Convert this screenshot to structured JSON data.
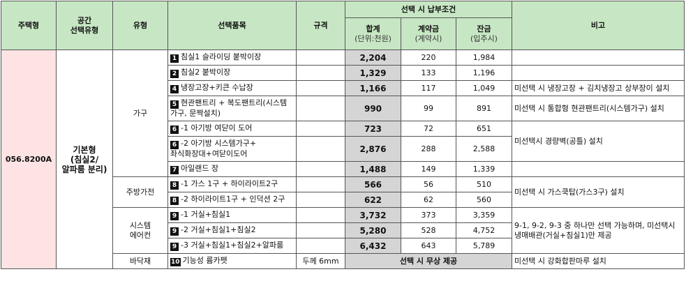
{
  "header": {
    "unit_type": "주택형",
    "space_type": "공간\n선택유형",
    "category": "유형",
    "item": "선택품목",
    "spec": "규격",
    "payment": "선택 시 납부조건",
    "total": "합계",
    "total_unit": "(단위:천원)",
    "deposit": "계약금",
    "deposit_sub": "(계약시)",
    "balance": "잔금",
    "balance_sub": "(입주시)",
    "remarks": "비고"
  },
  "group": {
    "unit_type": "056.8200A",
    "space_type": "기본형\n(침실2/\n알파룸 분리)"
  },
  "categories": {
    "furniture": "가구",
    "kitchen": "주방가전",
    "aircon": "시스템\n에어컨",
    "floor": "바닥재"
  },
  "rows": [
    {
      "no": "1",
      "item": "침실1 슬라이딩 붙박이장",
      "spec": "",
      "total": "2,204",
      "deposit": "220",
      "balance": "1,984"
    },
    {
      "no": "2",
      "item": "침실2 붙박이장",
      "spec": "",
      "total": "1,329",
      "deposit": "133",
      "balance": "1,196"
    },
    {
      "no": "4",
      "item": "냉장고장+키큰 수납장",
      "spec": "",
      "total": "1,166",
      "deposit": "117",
      "balance": "1,049"
    },
    {
      "no": "5",
      "item": "현관팬트리 + 복도팬트리(시스템가구, 문짝설치)",
      "spec": "",
      "total": "990",
      "deposit": "99",
      "balance": "891"
    },
    {
      "no": "6",
      "item": "-1 아기방 여닫이 도어",
      "spec": "",
      "total": "723",
      "deposit": "72",
      "balance": "651"
    },
    {
      "no": "6",
      "item": "-2 아기방 시스템가구+\n    좌식화장대+여닫이도어",
      "spec": "",
      "total": "2,876",
      "deposit": "288",
      "balance": "2,588"
    },
    {
      "no": "7",
      "item": "아일랜드 장",
      "spec": "",
      "total": "1,488",
      "deposit": "149",
      "balance": "1,339"
    },
    {
      "no": "8",
      "item": "-1 가스 1구 + 하이라이트2구",
      "spec": "",
      "total": "566",
      "deposit": "56",
      "balance": "510"
    },
    {
      "no": "8",
      "item": "-2 하이라이트1구 + 인덕션 2구",
      "spec": "",
      "total": "622",
      "deposit": "62",
      "balance": "560"
    },
    {
      "no": "9",
      "item": "-1 거실+침실1",
      "spec": "",
      "total": "3,732",
      "deposit": "373",
      "balance": "3,359"
    },
    {
      "no": "9",
      "item": "-2 거실+침실1+침실2",
      "spec": "",
      "total": "5,280",
      "deposit": "528",
      "balance": "4,752"
    },
    {
      "no": "9",
      "item": "-3 거실+침실1+침실2+알파룸",
      "spec": "",
      "total": "6,432",
      "deposit": "643",
      "balance": "5,789"
    },
    {
      "no": "10",
      "item": "기능성 륨카펫",
      "spec": "두께 6mm",
      "free": "선택 시 무상 제공"
    }
  ],
  "remarks": {
    "r4": "미선택 시 냉장고장 + 김치냉장고 상부장이 설치",
    "r5": "미선택 시 통합형 현관팬트리(시스템가구) 설치",
    "r6": "미선택시 경량벽(공틀) 설치",
    "r8": "미선택 시 가스쿡탑(가스3구) 설치",
    "r9": "9-1, 9-2, 9-3 중 하나만 선택 가능하며, 미선택시 냉매배관(거실+침실1)만 제공",
    "r10": "미선택 시 강화합판마루 설치"
  }
}
